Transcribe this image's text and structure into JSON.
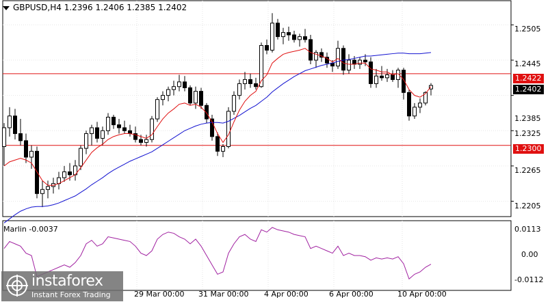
{
  "header": {
    "symbol_line": "GBPUSD,H4  1.2396 1.2406 1.2385 1.2402"
  },
  "indicator": {
    "label": "Marlin -0.0037"
  },
  "price_axis": [
    "1.2505",
    "1.2445",
    "1.2385",
    "1.2325",
    "1.2265",
    "1.2205"
  ],
  "indicator_axis": [
    "0.0113",
    "0.00",
    "-0.0112"
  ],
  "time_axis": [
    "29 Mar 00:00",
    "31 Mar 00:00",
    "4 Apr 00:00",
    "6 Apr 00:00",
    "10 Apr 00:00"
  ],
  "tags": {
    "resistance": "1.2422",
    "current": "1.2402",
    "support": "1.2300"
  },
  "logo": {
    "brand": "instaforex",
    "tagline": "Instant Forex Trading"
  },
  "colors": {
    "resistance_line": "#e01010",
    "support_line": "#e01010",
    "fast_ma": "#e01010",
    "slow_ma": "#1010d0",
    "oscillator": "#a020a0",
    "current_tag": "#000000"
  },
  "chart_data": {
    "type": "candlestick",
    "ylim": [
      1.218,
      1.2545
    ],
    "indicator_ylim": [
      -0.014,
      0.014
    ],
    "levels": {
      "resistance": 1.2422,
      "support": 1.23
    },
    "candles": [
      [
        1.2298,
        1.2338,
        1.2265,
        1.233
      ],
      [
        1.233,
        1.2365,
        1.2315,
        1.235
      ],
      [
        1.235,
        1.2362,
        1.231,
        1.232
      ],
      [
        1.232,
        1.2345,
        1.23,
        1.2308
      ],
      [
        1.2308,
        1.232,
        1.227,
        1.228
      ],
      [
        1.228,
        1.23,
        1.226,
        1.229
      ],
      [
        1.229,
        1.2298,
        1.221,
        1.2218
      ],
      [
        1.2218,
        1.224,
        1.2195,
        1.2225
      ],
      [
        1.2225,
        1.224,
        1.221,
        1.223
      ],
      [
        1.223,
        1.2245,
        1.2218,
        1.2235
      ],
      [
        1.2235,
        1.2255,
        1.2225,
        1.2245
      ],
      [
        1.2245,
        1.2265,
        1.2238,
        1.2255
      ],
      [
        1.2255,
        1.227,
        1.224,
        1.225
      ],
      [
        1.225,
        1.2275,
        1.224,
        1.2265
      ],
      [
        1.2265,
        1.23,
        1.2258,
        1.2295
      ],
      [
        1.2295,
        1.2325,
        1.2285,
        1.232
      ],
      [
        1.232,
        1.2335,
        1.23,
        1.233
      ],
      [
        1.233,
        1.234,
        1.2305,
        1.2312
      ],
      [
        1.2312,
        1.2332,
        1.23,
        1.2325
      ],
      [
        1.2325,
        1.2355,
        1.2318,
        1.2348
      ],
      [
        1.2348,
        1.2352,
        1.2328,
        1.2335
      ],
      [
        1.2335,
        1.2345,
        1.232,
        1.233
      ],
      [
        1.233,
        1.2342,
        1.232,
        1.2325
      ],
      [
        1.2325,
        1.2335,
        1.2315,
        1.232
      ],
      [
        1.232,
        1.2332,
        1.2305,
        1.231
      ],
      [
        1.231,
        1.2318,
        1.23,
        1.2305
      ],
      [
        1.2305,
        1.2318,
        1.2298,
        1.231
      ],
      [
        1.231,
        1.235,
        1.2305,
        1.2345
      ],
      [
        1.2345,
        1.2382,
        1.234,
        1.2378
      ],
      [
        1.2378,
        1.2392,
        1.2368,
        1.2385
      ],
      [
        1.2385,
        1.24,
        1.2375,
        1.2395
      ],
      [
        1.2395,
        1.241,
        1.2385,
        1.24
      ],
      [
        1.24,
        1.242,
        1.2392,
        1.2408
      ],
      [
        1.2408,
        1.2418,
        1.2392,
        1.2398
      ],
      [
        1.2398,
        1.2402,
        1.2368,
        1.2372
      ],
      [
        1.2372,
        1.24,
        1.2362,
        1.2392
      ],
      [
        1.2392,
        1.2398,
        1.2362,
        1.2368
      ],
      [
        1.2368,
        1.2372,
        1.2338,
        1.2345
      ],
      [
        1.2345,
        1.2352,
        1.2308,
        1.2315
      ],
      [
        1.2315,
        1.2322,
        1.2282,
        1.229
      ],
      [
        1.229,
        1.2302,
        1.228,
        1.2298
      ],
      [
        1.2298,
        1.2365,
        1.2295,
        1.2358
      ],
      [
        1.2358,
        1.2392,
        1.2352,
        1.2385
      ],
      [
        1.2385,
        1.2412,
        1.2378,
        1.2405
      ],
      [
        1.2405,
        1.2425,
        1.2395,
        1.2412
      ],
      [
        1.2412,
        1.2422,
        1.2398,
        1.2405
      ],
      [
        1.2405,
        1.2415,
        1.2395,
        1.24
      ],
      [
        1.24,
        1.2475,
        1.2398,
        1.247
      ],
      [
        1.247,
        1.248,
        1.2455,
        1.2462
      ],
      [
        1.2462,
        1.2525,
        1.2458,
        1.2508
      ],
      [
        1.2508,
        1.2515,
        1.248,
        1.2485
      ],
      [
        1.2485,
        1.25,
        1.2472,
        1.2492
      ],
      [
        1.2492,
        1.2502,
        1.2478,
        1.2488
      ],
      [
        1.2488,
        1.2495,
        1.2475,
        1.248
      ],
      [
        1.248,
        1.249,
        1.2468,
        1.2485
      ],
      [
        1.2485,
        1.2498,
        1.2475,
        1.248
      ],
      [
        1.248,
        1.2488,
        1.2438,
        1.2445
      ],
      [
        1.2445,
        1.2462,
        1.2432,
        1.2458
      ],
      [
        1.2458,
        1.2465,
        1.2442,
        1.245
      ],
      [
        1.245,
        1.2458,
        1.2432,
        1.244
      ],
      [
        1.244,
        1.2445,
        1.2425,
        1.2435
      ],
      [
        1.2435,
        1.2478,
        1.243,
        1.2465
      ],
      [
        1.2465,
        1.247,
        1.242,
        1.2428
      ],
      [
        1.2428,
        1.2455,
        1.2422,
        1.2445
      ],
      [
        1.2445,
        1.2452,
        1.243,
        1.2438
      ],
      [
        1.2438,
        1.245,
        1.243,
        1.2445
      ],
      [
        1.2445,
        1.2455,
        1.2435,
        1.2442
      ],
      [
        1.2442,
        1.245,
        1.2398,
        1.2405
      ],
      [
        1.2405,
        1.243,
        1.2398,
        1.2418
      ],
      [
        1.2418,
        1.2435,
        1.241,
        1.2415
      ],
      [
        1.2415,
        1.243,
        1.2408,
        1.242
      ],
      [
        1.242,
        1.2428,
        1.2408,
        1.2412
      ],
      [
        1.2412,
        1.2432,
        1.2398,
        1.2428
      ],
      [
        1.2428,
        1.2432,
        1.2378,
        1.239
      ],
      [
        1.239,
        1.2395,
        1.2342,
        1.235
      ],
      [
        1.235,
        1.2372,
        1.2345,
        1.2365
      ],
      [
        1.2365,
        1.238,
        1.2355,
        1.2372
      ],
      [
        1.2372,
        1.2392,
        1.2368,
        1.239
      ],
      [
        1.2396,
        1.2406,
        1.2385,
        1.2402
      ]
    ],
    "fast_ma": [
      1.2265,
      1.2272,
      1.2275,
      1.2278,
      1.2275,
      1.227,
      1.2255,
      1.224,
      1.2232,
      1.2232,
      1.2235,
      1.224,
      1.2245,
      1.225,
      1.2262,
      1.2275,
      1.2288,
      1.2296,
      1.2302,
      1.231,
      1.2315,
      1.2318,
      1.232,
      1.232,
      1.2318,
      1.2315,
      1.2312,
      1.2318,
      1.2332,
      1.2345,
      1.2355,
      1.2362,
      1.237,
      1.2372,
      1.2368,
      1.237,
      1.2365,
      1.2355,
      1.234,
      1.232,
      1.2305,
      1.2318,
      1.234,
      1.236,
      1.2375,
      1.2385,
      1.2392,
      1.241,
      1.242,
      1.244,
      1.2448,
      1.2455,
      1.2458,
      1.246,
      1.2462,
      1.2465,
      1.2458,
      1.2455,
      1.2452,
      1.2448,
      1.2442,
      1.2448,
      1.244,
      1.2438,
      1.2438,
      1.244,
      1.244,
      1.243,
      1.2428,
      1.2425,
      1.2425,
      1.242,
      1.2422,
      1.2412,
      1.2395,
      1.2385,
      1.2382,
      1.2388,
      1.24
    ],
    "slow_ma": [
      1.2168,
      1.2175,
      1.2182,
      1.2188,
      1.2192,
      1.2195,
      1.2196,
      1.2196,
      1.2197,
      1.2199,
      1.2202,
      1.2206,
      1.221,
      1.2214,
      1.222,
      1.2226,
      1.2233,
      1.2239,
      1.2245,
      1.2252,
      1.2258,
      1.2263,
      1.2268,
      1.2273,
      1.2277,
      1.2281,
      1.2285,
      1.2289,
      1.2295,
      1.2301,
      1.2307,
      1.2313,
      1.2319,
      1.2325,
      1.2329,
      1.2333,
      1.2336,
      1.2338,
      1.2339,
      1.2339,
      1.2338,
      1.2341,
      1.2346,
      1.2351,
      1.2357,
      1.2363,
      1.2368,
      1.2375,
      1.2382,
      1.2391,
      1.2398,
      1.2405,
      1.2411,
      1.2417,
      1.2422,
      1.2427,
      1.243,
      1.2433,
      1.2436,
      1.2438,
      1.244,
      1.2443,
      1.2445,
      1.2446,
      1.2448,
      1.245,
      1.2452,
      1.2452,
      1.2453,
      1.2454,
      1.2455,
      1.2456,
      1.2457,
      1.2457,
      1.2456,
      1.2456,
      1.2456,
      1.2457,
      1.2458
    ],
    "oscillator": [
      0.003,
      0.006,
      0.005,
      0.004,
      0.001,
      0.0,
      -0.009,
      -0.008,
      -0.007,
      -0.006,
      -0.005,
      -0.004,
      -0.005,
      -0.003,
      0.0,
      0.005,
      0.0065,
      0.004,
      0.005,
      0.008,
      0.0075,
      0.007,
      0.0065,
      0.006,
      0.004,
      0.001,
      0.0,
      0.002,
      0.007,
      0.009,
      0.01,
      0.0095,
      0.008,
      0.007,
      0.005,
      0.007,
      0.004,
      0.0,
      -0.004,
      -0.008,
      -0.007,
      0.001,
      0.005,
      0.008,
      0.009,
      0.007,
      0.006,
      0.011,
      0.01,
      0.012,
      0.011,
      0.0105,
      0.01,
      0.009,
      0.0085,
      0.008,
      0.003,
      0.004,
      0.003,
      0.002,
      0.001,
      0.004,
      0.0,
      0.001,
      0.0,
      0.0,
      -0.0005,
      -0.002,
      -0.001,
      -0.0015,
      -0.001,
      -0.0015,
      -0.0005,
      -0.0035,
      -0.01,
      -0.008,
      -0.007,
      -0.005,
      -0.0037
    ]
  }
}
